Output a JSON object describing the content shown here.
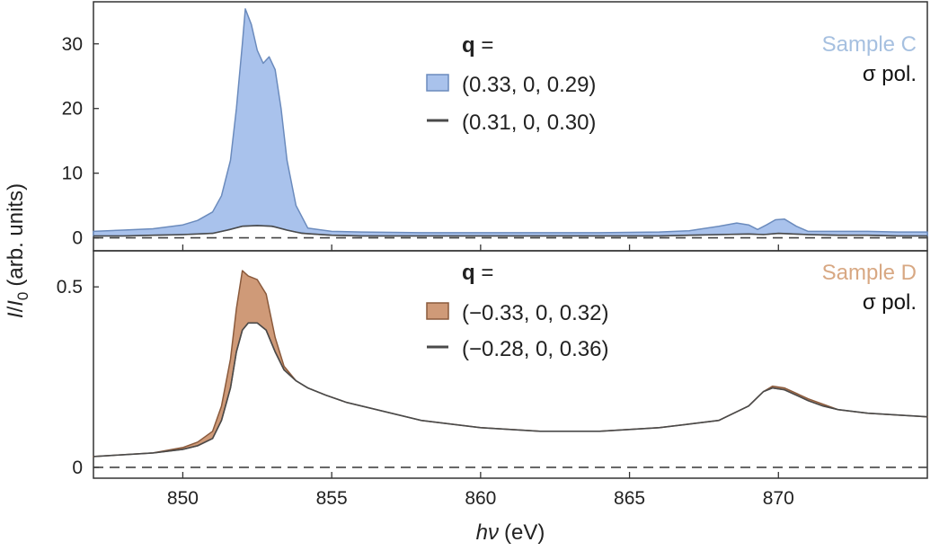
{
  "chart_data": {
    "type": "area",
    "x_axis": {
      "label_var": "hν",
      "label_unit": "(eV)",
      "range": [
        847,
        875
      ],
      "ticks": [
        850,
        855,
        860,
        865,
        870
      ],
      "tick_labels": [
        "850",
        "855",
        "860",
        "865",
        "870"
      ]
    },
    "y_axis_label": {
      "num": "I",
      "slash": "/",
      "den": "I",
      "sub": "0",
      "units": "(arb. units)"
    },
    "panels": [
      {
        "id": "top",
        "sample_label": "Sample C",
        "sample_color": "#a6c0e0",
        "pol_label": "σ pol.",
        "ylim": [
          -2,
          36.5
        ],
        "yticks": [
          0,
          10,
          20,
          30
        ],
        "ytick_labels": [
          "0",
          "10",
          "20",
          "30"
        ],
        "legend_title": "q",
        "legend_title_suffix": " =",
        "fill_color": "#a9c2ec",
        "fill_edge": "#6b8bbd",
        "line_color": "#4a4a4a",
        "series": [
          {
            "name": "(0.33, 0, 0.29)",
            "role": "filled",
            "x": [
              847,
              848,
              849,
              850,
              850.5,
              851,
              851.3,
              851.6,
              851.8,
              852.0,
              852.1,
              852.3,
              852.5,
              852.7,
              852.9,
              853.1,
              853.3,
              853.5,
              853.8,
              854.2,
              855,
              856,
              858,
              860,
              862,
              864,
              866,
              867,
              868,
              868.6,
              869,
              869.3,
              869.6,
              869.9,
              870.2,
              870.6,
              871,
              872,
              873,
              874,
              875
            ],
            "y": [
              1.0,
              1.2,
              1.4,
              2.0,
              2.7,
              4.0,
              6.5,
              12.0,
              20.0,
              30.0,
              35.4,
              33.0,
              29.0,
              27.0,
              28.0,
              26.0,
              20.0,
              12.0,
              5.0,
              1.5,
              1.0,
              0.9,
              0.8,
              0.8,
              0.8,
              0.8,
              0.9,
              1.1,
              1.8,
              2.3,
              2.0,
              1.3,
              2.0,
              2.8,
              2.9,
              1.8,
              1.0,
              1.0,
              1.0,
              0.9,
              0.9
            ]
          },
          {
            "name": "(0.31, 0, 0.30)",
            "role": "line",
            "x": [
              847,
              848,
              849,
              850,
              851,
              851.5,
              852.0,
              852.5,
              853.0,
              853.5,
              854,
              855,
              856,
              858,
              860,
              862,
              864,
              866,
              867,
              868,
              869,
              869.5,
              870,
              870.5,
              871,
              872,
              873,
              874,
              875
            ],
            "y": [
              0.3,
              0.3,
              0.4,
              0.5,
              0.7,
              1.2,
              1.8,
              1.9,
              1.8,
              1.2,
              0.7,
              0.4,
              0.3,
              0.3,
              0.3,
              0.3,
              0.3,
              0.3,
              0.4,
              0.5,
              0.6,
              0.5,
              0.7,
              0.6,
              0.5,
              0.4,
              0.4,
              0.3,
              0.3
            ]
          }
        ]
      },
      {
        "id": "bottom",
        "sample_label": "Sample D",
        "sample_color": "#d8a883",
        "pol_label": "σ pol.",
        "ylim": [
          -0.03,
          0.6
        ],
        "yticks": [
          0,
          0.5
        ],
        "ytick_labels": [
          "0",
          "0.5"
        ],
        "legend_title": "q",
        "legend_title_suffix": " =",
        "fill_color": "#cf9a78",
        "fill_edge": "#8a5a3c",
        "line_color": "#4a4a4a",
        "series": [
          {
            "name": "(−0.33, 0, 0.32)",
            "role": "filled",
            "x": [
              847,
              848,
              849,
              850,
              850.5,
              851,
              851.3,
              851.6,
              851.8,
              852.0,
              852.2,
              852.5,
              852.8,
              853.1,
              853.4,
              853.8,
              854.2,
              854.8,
              855.5,
              856.5,
              858,
              860,
              862,
              864,
              866,
              867,
              868,
              869,
              869.5,
              869.8,
              870.2,
              870.6,
              871,
              871.5,
              872,
              873,
              874,
              875
            ],
            "y": [
              0.03,
              0.035,
              0.04,
              0.055,
              0.07,
              0.1,
              0.17,
              0.3,
              0.44,
              0.545,
              0.53,
              0.52,
              0.48,
              0.36,
              0.28,
              0.24,
              0.22,
              0.2,
              0.18,
              0.16,
              0.13,
              0.11,
              0.1,
              0.1,
              0.11,
              0.12,
              0.13,
              0.17,
              0.21,
              0.225,
              0.22,
              0.205,
              0.19,
              0.175,
              0.16,
              0.15,
              0.145,
              0.14
            ]
          },
          {
            "name": "(−0.28, 0, 0.36)",
            "role": "line",
            "x": [
              847,
              848,
              849,
              850,
              850.5,
              851,
              851.3,
              851.6,
              851.8,
              852.0,
              852.2,
              852.5,
              852.8,
              853.1,
              853.4,
              853.8,
              854.2,
              854.8,
              855.5,
              856.5,
              858,
              860,
              862,
              864,
              866,
              867,
              868,
              869,
              869.5,
              869.8,
              870.2,
              870.6,
              871,
              871.5,
              872,
              873,
              874,
              875
            ],
            "y": [
              0.03,
              0.035,
              0.04,
              0.05,
              0.06,
              0.08,
              0.13,
              0.22,
              0.32,
              0.38,
              0.4,
              0.4,
              0.38,
              0.32,
              0.27,
              0.24,
              0.22,
              0.2,
              0.18,
              0.16,
              0.13,
              0.11,
              0.1,
              0.1,
              0.11,
              0.12,
              0.13,
              0.17,
              0.21,
              0.22,
              0.215,
              0.2,
              0.185,
              0.17,
              0.16,
              0.15,
              0.145,
              0.14
            ]
          }
        ]
      }
    ]
  }
}
